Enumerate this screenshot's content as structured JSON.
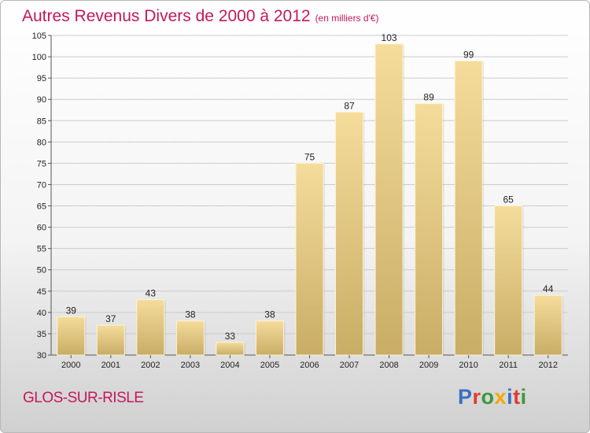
{
  "header": {
    "title": "Autres Revenus Divers de 2000 à 2012",
    "subtitle": "(en milliers d'€)"
  },
  "footer": {
    "town": "GLOS-SUR-RISLE",
    "logo": "Proxiti",
    "logo_colors": [
      "#3a6fc4",
      "#e23b2e",
      "#3a9a3a",
      "#f2a900",
      "#3a6fc4",
      "#e23b2e",
      "#3a9a3a"
    ]
  },
  "colors": {
    "bar_top": "#f5dc9b",
    "bar_bottom": "#c8ad66",
    "grid": "#cccccc",
    "accent": "#c2185b"
  },
  "chart_data": {
    "type": "bar",
    "title": "Autres Revenus Divers de 2000 à 2012",
    "subtitle": "(en milliers d'€)",
    "categories": [
      "2000",
      "2001",
      "2002",
      "2003",
      "2004",
      "2005",
      "2006",
      "2007",
      "2008",
      "2009",
      "2010",
      "2011",
      "2012"
    ],
    "values": [
      39,
      37,
      43,
      38,
      33,
      38,
      75,
      87,
      103,
      89,
      99,
      65,
      44
    ],
    "ylim": [
      30,
      105
    ],
    "ytick_step": 5,
    "grid": true,
    "data_labels": true
  }
}
